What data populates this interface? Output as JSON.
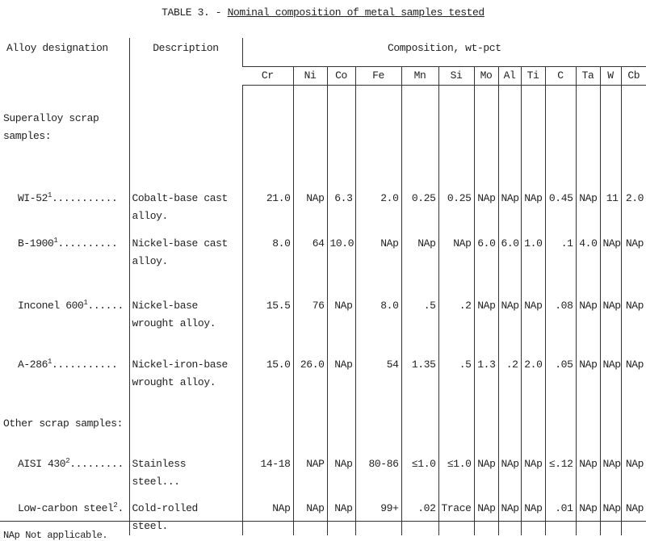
{
  "title": {
    "label": "TABLE 3. -",
    "text": "Nominal composition of metal samples tested"
  },
  "table": {
    "headers": {
      "alloy": "Alloy designation",
      "description": "Description",
      "composition": "Composition, wt-pct",
      "elements": [
        "Cr",
        "Ni",
        "Co",
        "Fe",
        "Mn",
        "Si",
        "Mo",
        "Al",
        "Ti",
        "C",
        "Ta",
        "W",
        "Cb"
      ]
    },
    "groups": [
      {
        "label": "Superalloy scrap samples:",
        "rows": [
          {
            "alloy": "WI-52",
            "note": "1",
            "leader": "...........",
            "description": "Cobalt-base cast alloy.",
            "values": [
              "21.0",
              "NAp",
              "6.3",
              "2.0",
              "0.25",
              "0.25",
              "NAp",
              "NAp",
              "NAp",
              "0.45",
              "NAp",
              "11",
              "2.0"
            ]
          },
          {
            "alloy": "B-1900",
            "note": "1",
            "leader": "..........",
            "description": "Nickel-base cast alloy.",
            "values": [
              "8.0",
              "64",
              "10.0",
              "NAp",
              "NAp",
              "NAp",
              "6.0",
              "6.0",
              "1.0",
              ".1",
              "4.0",
              "NAp",
              "NAp"
            ]
          },
          {
            "alloy": "Inconel 600",
            "note": "1",
            "leader": "......",
            "description": "Nickel-base wrought alloy.",
            "values": [
              "15.5",
              "76",
              "NAp",
              "8.0",
              ".5",
              ".2",
              "NAp",
              "NAp",
              "NAp",
              ".08",
              "NAp",
              "NAp",
              "NAp"
            ]
          },
          {
            "alloy": "A-286",
            "note": "1",
            "leader": "...........",
            "description": "Nickel-iron-base wrought alloy.",
            "values": [
              "15.0",
              "26.0",
              "NAp",
              "54",
              "1.35",
              ".5",
              "1.3",
              ".2",
              "2.0",
              ".05",
              "NAp",
              "NAp",
              "NAp"
            ]
          }
        ]
      },
      {
        "label": "Other scrap samples:",
        "rows": [
          {
            "alloy": "AISI 430",
            "note": "2",
            "leader": ".........",
            "description": "Stainless steel...",
            "values": [
              "14-18",
              "NAP",
              "NAp",
              "80-86",
              "≤1.0",
              "≤1.0",
              "NAp",
              "NAp",
              "NAp",
              "≤.12",
              "NAp",
              "NAp",
              "NAp"
            ]
          },
          {
            "alloy": "Low-carbon steel",
            "note": "2",
            "leader": ".",
            "description": "Cold-rolled steel.",
            "values": [
              "NAp",
              "NAp",
              "NAp",
              "99+",
              ".02",
              "Trace",
              "NAp",
              "NAp",
              "NAp",
              ".01",
              "NAp",
              "NAp",
              "NAp"
            ]
          }
        ]
      }
    ]
  },
  "footnote": "NAp Not applicable."
}
